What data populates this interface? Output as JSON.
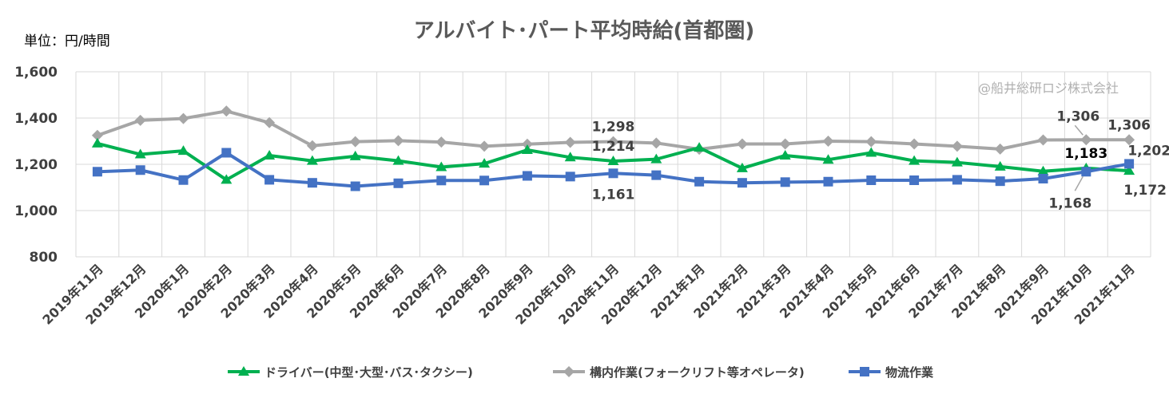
{
  "chart_data": {
    "type": "line",
    "title": "アルバイト･パート平均時給(首都圏)",
    "unit_label": "単位：円/時間",
    "watermark": "@船井総研ロジ株式会社",
    "ylim": [
      800,
      1600
    ],
    "yticks": [
      "1,600",
      "1,400",
      "1,200",
      "1,000",
      "800"
    ],
    "ytick_values": [
      1600,
      1400,
      1200,
      1000,
      800
    ],
    "categories": [
      "2019年11月",
      "2019年12月",
      "2020年1月",
      "2020年2月",
      "2020年3月",
      "2020年4月",
      "2020年5月",
      "2020年6月",
      "2020年7月",
      "2020年8月",
      "2020年9月",
      "2020年10月",
      "2020年11月",
      "2020年12月",
      "2021年1月",
      "2021年2月",
      "2021年3月",
      "2021年4月",
      "2021年5月",
      "2021年6月",
      "2021年7月",
      "2021年8月",
      "2021年9月",
      "2021年10月",
      "2021年11月"
    ],
    "series": [
      {
        "name": "ドライバー(中型･大型･バス･タクシー)",
        "color": "#00b050",
        "marker": "triangle",
        "values": [
          1290,
          1243,
          1258,
          1133,
          1238,
          1215,
          1235,
          1215,
          1188,
          1203,
          1262,
          1230,
          1214,
          1222,
          1272,
          1183,
          1238,
          1220,
          1250,
          1215,
          1208,
          1190,
          1170,
          1183,
          1172
        ]
      },
      {
        "name": "構内作業(フォークリフト等オペレータ)",
        "color": "#a6a6a6",
        "marker": "diamond",
        "values": [
          1325,
          1390,
          1398,
          1430,
          1380,
          1280,
          1298,
          1302,
          1296,
          1278,
          1287,
          1295,
          1298,
          1292,
          1265,
          1288,
          1288,
          1300,
          1298,
          1288,
          1278,
          1266,
          1305,
          1306,
          1306
        ]
      },
      {
        "name": "物流作業",
        "color": "#4472c4",
        "marker": "square",
        "values": [
          1168,
          1175,
          1132,
          1250,
          1133,
          1120,
          1105,
          1118,
          1130,
          1130,
          1150,
          1147,
          1161,
          1153,
          1125,
          1120,
          1123,
          1125,
          1131,
          1131,
          1133,
          1127,
          1138,
          1168,
          1202
        ]
      }
    ],
    "data_labels": [
      {
        "text": "1,298",
        "series": 1,
        "index": 12,
        "pos": "above"
      },
      {
        "text": "1,214",
        "series": 0,
        "index": 12,
        "pos": "above"
      },
      {
        "text": "1,161",
        "series": 2,
        "index": 12,
        "pos": "below"
      },
      {
        "text": "1,306",
        "series": 1,
        "index": 23,
        "pos": "above-left"
      },
      {
        "text": "1,306",
        "series": 1,
        "index": 24,
        "pos": "above"
      },
      {
        "text": "1,183",
        "series": 0,
        "index": 23,
        "pos": "above-dark"
      },
      {
        "text": "1,202",
        "series": 2,
        "index": 24,
        "pos": "above-right"
      },
      {
        "text": "1,168",
        "series": 2,
        "index": 23,
        "pos": "below-left"
      },
      {
        "text": "1,172",
        "series": 0,
        "index": 24,
        "pos": "below-right"
      }
    ]
  }
}
